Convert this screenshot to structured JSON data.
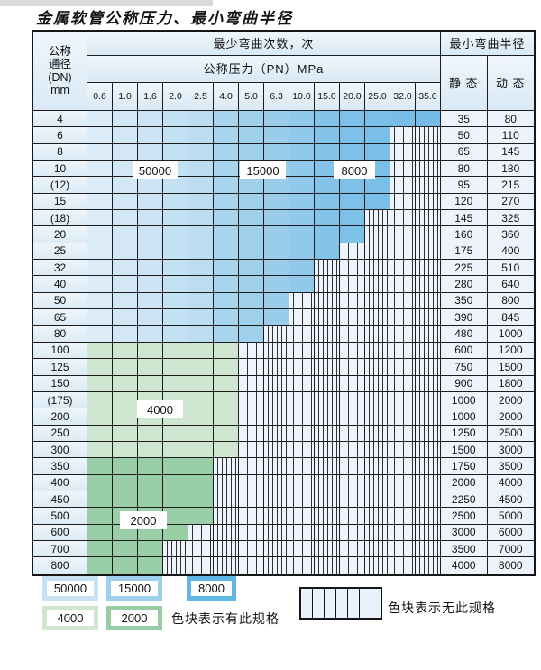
{
  "page": {
    "title": "金属软管公称压力、最小弯曲半径"
  },
  "table": {
    "corner": {
      "line1": "公称",
      "line2": "通径",
      "line3": "(DN)",
      "line4": "mm"
    },
    "bend_cycles_header": "最少弯曲次数，次",
    "pressure_header": "公称压力（PN）MPa",
    "radius_header": "最小弯曲半径",
    "static_header": "静 态",
    "dynamic_header": "动 态",
    "pressure_columns": [
      "0.6",
      "1.0",
      "1.6",
      "2.0",
      "2.5",
      "4.0",
      "5.0",
      "6.3",
      "10.0",
      "15.0",
      "20.0",
      "25.0",
      "32.0",
      "35.0"
    ],
    "rows": [
      {
        "dn": "4",
        "filled": 14,
        "zone": "blue",
        "static": "35",
        "dynamic": "80"
      },
      {
        "dn": "6",
        "filled": 12,
        "zone": "blue",
        "static": "50",
        "dynamic": "110"
      },
      {
        "dn": "8",
        "filled": 12,
        "zone": "blue",
        "static": "65",
        "dynamic": "145"
      },
      {
        "dn": "10",
        "filled": 12,
        "zone": "blue",
        "static": "80",
        "dynamic": "180"
      },
      {
        "dn": "(12)",
        "filled": 12,
        "zone": "blue",
        "static": "95",
        "dynamic": "215"
      },
      {
        "dn": "15",
        "filled": 12,
        "zone": "blue",
        "static": "120",
        "dynamic": "270"
      },
      {
        "dn": "(18)",
        "filled": 11,
        "zone": "blue",
        "static": "145",
        "dynamic": "325"
      },
      {
        "dn": "20",
        "filled": 11,
        "zone": "blue",
        "static": "160",
        "dynamic": "360"
      },
      {
        "dn": "25",
        "filled": 10,
        "zone": "blue",
        "static": "175",
        "dynamic": "400"
      },
      {
        "dn": "32",
        "filled": 9,
        "zone": "blue",
        "static": "225",
        "dynamic": "510"
      },
      {
        "dn": "40",
        "filled": 9,
        "zone": "blue",
        "static": "280",
        "dynamic": "640"
      },
      {
        "dn": "50",
        "filled": 8,
        "zone": "blue",
        "static": "350",
        "dynamic": "800"
      },
      {
        "dn": "65",
        "filled": 8,
        "zone": "blue",
        "static": "390",
        "dynamic": "845"
      },
      {
        "dn": "80",
        "filled": 7,
        "zone": "blue",
        "static": "480",
        "dynamic": "1000"
      },
      {
        "dn": "100",
        "filled": 6,
        "zone": "g4",
        "static": "600",
        "dynamic": "1200"
      },
      {
        "dn": "125",
        "filled": 6,
        "zone": "g4",
        "static": "750",
        "dynamic": "1500"
      },
      {
        "dn": "150",
        "filled": 6,
        "zone": "g4",
        "static": "900",
        "dynamic": "1800"
      },
      {
        "dn": "(175)",
        "filled": 6,
        "zone": "g4",
        "static": "1000",
        "dynamic": "2000"
      },
      {
        "dn": "200",
        "filled": 6,
        "zone": "g4",
        "static": "1000",
        "dynamic": "2000"
      },
      {
        "dn": "250",
        "filled": 6,
        "zone": "g4",
        "static": "1250",
        "dynamic": "2500"
      },
      {
        "dn": "300",
        "filled": 6,
        "zone": "g4",
        "static": "1500",
        "dynamic": "3000"
      },
      {
        "dn": "350",
        "filled": 5,
        "zone": "g2",
        "static": "1750",
        "dynamic": "3500"
      },
      {
        "dn": "400",
        "filled": 5,
        "zone": "g2",
        "static": "2000",
        "dynamic": "4000"
      },
      {
        "dn": "450",
        "filled": 5,
        "zone": "g2",
        "static": "2250",
        "dynamic": "4500"
      },
      {
        "dn": "500",
        "filled": 5,
        "zone": "g2",
        "static": "2500",
        "dynamic": "5000"
      },
      {
        "dn": "600",
        "filled": 4,
        "zone": "g2",
        "static": "3000",
        "dynamic": "6000"
      },
      {
        "dn": "700",
        "filled": 3,
        "zone": "g2",
        "static": "3500",
        "dynamic": "7000"
      },
      {
        "dn": "800",
        "filled": 3,
        "zone": "g2",
        "static": "4000",
        "dynamic": "8000"
      }
    ]
  },
  "cycle_labels": [
    {
      "id": "l50000",
      "text": "50000"
    },
    {
      "id": "l15000",
      "text": "15000"
    },
    {
      "id": "l8000",
      "text": "8000"
    },
    {
      "id": "l4000",
      "text": "4000"
    },
    {
      "id": "l2000",
      "text": "2000"
    }
  ],
  "legend": {
    "swatches": [
      {
        "label": "50000",
        "color": "#c8e2f4"
      },
      {
        "label": "15000",
        "color": "#9ed0ed"
      },
      {
        "label": "8000",
        "color": "#63b7e6"
      },
      {
        "label": "4000",
        "color": "#cfe6d1"
      },
      {
        "label": "2000",
        "color": "#97cda4"
      }
    ],
    "available_text": "色块表示有此规格",
    "unavailable_text": "色块表示无此规格"
  },
  "colors": {
    "blue_light": "#c4e0f3",
    "blue_mid": "#a0d0ec",
    "blue_dark": "#7cc0e8",
    "green_light": "#cfe6d1",
    "green_dark": "#9acea6",
    "hatch_bg": "#eef4fb"
  }
}
